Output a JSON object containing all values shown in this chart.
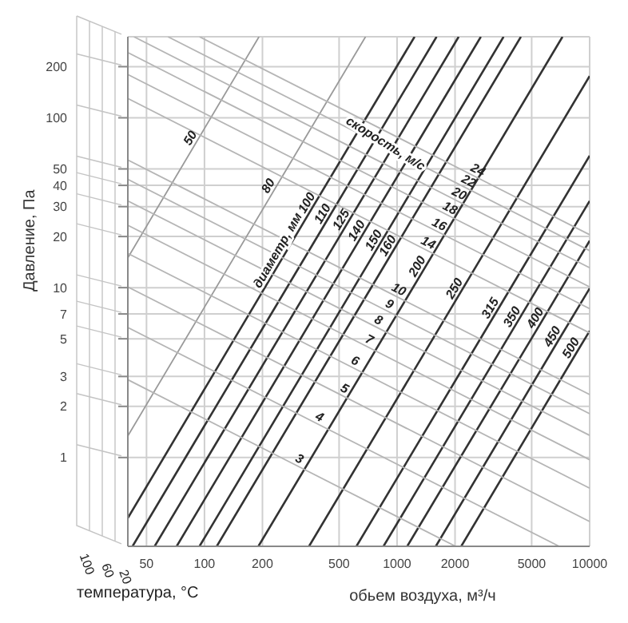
{
  "chart_data": {
    "type": "line",
    "xlabel": "обьем воздуха, м³/ч",
    "ylabel": "Давление, Па",
    "log": "xy",
    "grid": true,
    "legend": false,
    "marker": "none",
    "line_style": "solid",
    "xlim": [
      40,
      10000
    ],
    "ylim": [
      0.3,
      300
    ],
    "xticks": [
      50,
      100,
      200,
      500,
      1000,
      2000,
      5000,
      10000
    ],
    "yticks": [
      1,
      2,
      3,
      5,
      7,
      10,
      20,
      30,
      40,
      50,
      100,
      200
    ],
    "annotations": [
      "скорость, м/с",
      "диаметр, мм",
      "температура, °C",
      "100",
      "60",
      "20"
    ],
    "series": [
      {
        "name": "50",
        "color": "#9a9a9a",
        "x": [
          40,
          91,
          192
        ],
        "values": [
          15.0,
          72.3,
          300
        ]
      },
      {
        "name": "80",
        "color": "#9a9a9a",
        "x": [
          40,
          231,
          686
        ],
        "values": [
          1.34,
          37.8,
          300
        ]
      },
      {
        "name": "100",
        "color": "#333333",
        "x": [
          40,
          366,
          1233
        ],
        "values": [
          0.44,
          30.0,
          300
        ]
      },
      {
        "name": "110",
        "color": "#333333",
        "x": [
          42.3,
          442,
          1604
        ],
        "values": [
          0.3,
          25.9,
          300
        ]
      },
      {
        "name": "125",
        "color": "#333333",
        "x": [
          55.1,
          552,
          2089
        ],
        "values": [
          0.3,
          23.9,
          300
        ]
      },
      {
        "name": "140",
        "color": "#333333",
        "x": [
          71.7,
          664,
          2723
        ],
        "values": [
          0.3,
          20.6,
          300
        ]
      },
      {
        "name": "150",
        "color": "#333333",
        "x": [
          94.2,
          815,
          3573
        ],
        "values": [
          0.3,
          18.1,
          300
        ]
      },
      {
        "name": "160",
        "color": "#333333",
        "x": [
          115.8,
          964,
          4395
        ],
        "values": [
          0.3,
          16.8,
          300
        ]
      },
      {
        "name": "200",
        "color": "#333333",
        "x": [
          190.5,
          1371,
          7228
        ],
        "values": [
          0.3,
          12.7,
          300
        ]
      },
      {
        "name": "250",
        "color": "#333333",
        "x": [
          349,
          2138,
          10000
        ],
        "values": [
          0.3,
          9.4,
          176
        ]
      },
      {
        "name": "315",
        "color": "#333333",
        "x": [
          615,
          3281,
          10000
        ],
        "values": [
          0.3,
          7.2,
          59.8
        ]
      },
      {
        "name": "350",
        "color": "#333333",
        "x": [
          850,
          4256,
          10000
        ],
        "values": [
          0.3,
          6.4,
          32.4
        ]
      },
      {
        "name": "400",
        "color": "#333333",
        "x": [
          1129,
          5623,
          10000
        ],
        "values": [
          0.3,
          6.3,
          18.9
        ]
      },
      {
        "name": "450",
        "color": "#333333",
        "x": [
          1589,
          6887,
          10000
        ],
        "values": [
          0.3,
          4.9,
          9.9
        ]
      },
      {
        "name": "500",
        "color": "#333333",
        "x": [
          2153,
          8610,
          10000
        ],
        "values": [
          0.3,
          4.2,
          5.56
        ]
      },
      {
        "name": "3",
        "color": "#b5b5b5",
        "x": [
          40,
          299,
          2014
        ],
        "values": [
          2.87,
          0.9,
          0.3
        ]
      },
      {
        "name": "4",
        "color": "#b5b5b5",
        "x": [
          40,
          381,
          6950
        ],
        "values": [
          5.83,
          1.59,
          0.3
        ]
      },
      {
        "name": "5",
        "color": "#b5b5b5",
        "x": [
          40,
          513,
          10000
        ],
        "values": [
          10.1,
          2.33,
          0.42
        ]
      },
      {
        "name": "6",
        "color": "#b5b5b5",
        "x": [
          40,
          583,
          10000
        ],
        "values": [
          15.9,
          3.4,
          0.66
        ]
      },
      {
        "name": "7",
        "color": "#b5b5b5",
        "x": [
          40,
          690,
          10000
        ],
        "values": [
          23.3,
          4.53,
          0.97
        ]
      },
      {
        "name": "8",
        "color": "#b5b5b5",
        "x": [
          40,
          771,
          10000
        ],
        "values": [
          32.4,
          5.9,
          1.35
        ]
      },
      {
        "name": "9",
        "color": "#b5b5b5",
        "x": [
          40,
          879,
          10000
        ],
        "values": [
          43.4,
          7.33,
          1.81
        ]
      },
      {
        "name": "10",
        "color": "#b5b5b5",
        "x": [
          40,
          982,
          10000
        ],
        "values": [
          56.4,
          8.93,
          2.35
        ]
      },
      {
        "name": "14",
        "color": "#b5b5b5",
        "x": [
          40,
          1396,
          10000
        ],
        "values": [
          130,
          16.8,
          5.41
        ]
      },
      {
        "name": "16",
        "color": "#b5b5b5",
        "x": [
          40,
          1592,
          10000
        ],
        "values": [
          180,
          21.6,
          7.52
        ]
      },
      {
        "name": "18",
        "color": "#b5b5b5",
        "x": [
          40,
          1811,
          10000
        ],
        "values": [
          242,
          26.9,
          10.1
        ]
      },
      {
        "name": "20",
        "color": "#b5b5b5",
        "x": [
          43.0,
          2023,
          10000
        ],
        "values": [
          300,
          32.7,
          13.1
        ]
      },
      {
        "name": "22",
        "color": "#b5b5b5",
        "x": [
          64.6,
          2265,
          10000
        ],
        "values": [
          300,
          38.8,
          16.5
        ]
      },
      {
        "name": "24",
        "color": "#b5b5b5",
        "x": [
          94.2,
          2529,
          10000
        ],
        "values": [
          300,
          45.2,
          20.5
        ]
      }
    ]
  }
}
